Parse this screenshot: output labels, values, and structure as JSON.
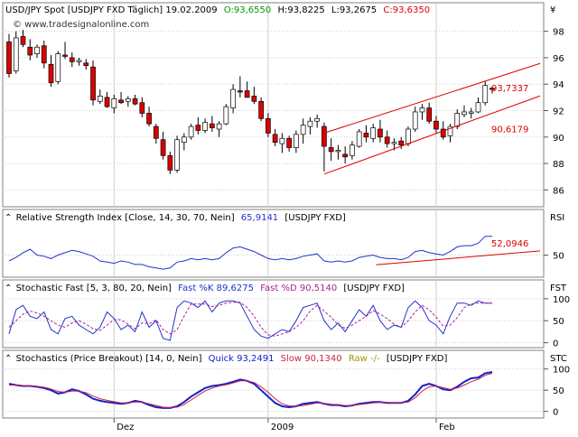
{
  "header": {
    "symbol": "USD/JPY Spot [USDJPY FXD  Täglich] 19.02.2009",
    "open": "O:93,6550",
    "high": "H:93,8225",
    "low": "L:93,2675",
    "close": "C:93,6350",
    "currency_symbol": "¥",
    "watermark": "© www.tradesignalonline.com"
  },
  "panels": {
    "rsi": {
      "title": "Relative Strength Index [Close, 14, 30, 70, Nein]",
      "value": "65,9141",
      "source": "[USDJPY FXD]",
      "axis_label": "RSI",
      "trend_label": "52,0946"
    },
    "stoch_fast": {
      "title": "Stochastic Fast [5, 3, 80, 20, Nein]",
      "k_text": "Fast %K 89,6275",
      "d_text": "Fast %D 90,5140",
      "source": "[USDJPY FXD]",
      "axis_label": "FST"
    },
    "stoch_breakout": {
      "title": "Stochastics (Price Breakout) [14, 0, Nein]",
      "quick_text": "Quick 93,2491",
      "slow_text": "Slow 90,1340",
      "raw_text": "Raw -/-",
      "source": "[USDJPY FXD]",
      "axis_label": "STC"
    }
  },
  "colors": {
    "up_candle": "#ffffff",
    "down_candle": "#dd0000",
    "channel": "#dd0000",
    "rsi_line": "#2233cc",
    "k_line": "#2233cc",
    "d_line": "#aa2299",
    "quick_line": "#1122cc",
    "slow_line": "#cc2244",
    "open_color": "#009900",
    "close_color": "#dd0000",
    "raw_color": "#999900",
    "grid": "#cccccc"
  },
  "chart_data": [
    {
      "type": "candlestick",
      "title": "USD/JPY Spot",
      "x_ticks": [
        "Dez",
        "2009",
        "Feb"
      ],
      "ylim": [
        85,
        99
      ],
      "y_ticks": [
        "98",
        "96",
        "94",
        "92",
        "90",
        "88",
        "86"
      ],
      "grid": true,
      "candles": [
        {
          "o": 97.2,
          "h": 97.8,
          "l": 94.5,
          "c": 94.8
        },
        {
          "o": 95.0,
          "h": 98.0,
          "l": 94.8,
          "c": 97.5
        },
        {
          "o": 97.6,
          "h": 98.1,
          "l": 96.8,
          "c": 97.0
        },
        {
          "o": 96.8,
          "h": 97.4,
          "l": 95.8,
          "c": 96.2
        },
        {
          "o": 96.3,
          "h": 97.0,
          "l": 96.0,
          "c": 96.8
        },
        {
          "o": 96.9,
          "h": 97.3,
          "l": 95.2,
          "c": 95.6
        },
        {
          "o": 95.5,
          "h": 96.2,
          "l": 93.8,
          "c": 94.1
        },
        {
          "o": 94.2,
          "h": 96.5,
          "l": 94.0,
          "c": 96.3
        },
        {
          "o": 96.2,
          "h": 97.2,
          "l": 95.9,
          "c": 96.1
        },
        {
          "o": 96.0,
          "h": 96.4,
          "l": 95.3,
          "c": 95.7
        },
        {
          "o": 95.7,
          "h": 96.0,
          "l": 95.4,
          "c": 95.8
        },
        {
          "o": 95.6,
          "h": 95.9,
          "l": 95.1,
          "c": 95.4
        },
        {
          "o": 95.3,
          "h": 95.8,
          "l": 92.4,
          "c": 92.8
        },
        {
          "o": 92.7,
          "h": 93.6,
          "l": 92.5,
          "c": 93.1
        },
        {
          "o": 93.0,
          "h": 93.4,
          "l": 92.2,
          "c": 92.3
        },
        {
          "o": 92.2,
          "h": 93.2,
          "l": 91.8,
          "c": 92.9
        },
        {
          "o": 92.8,
          "h": 93.4,
          "l": 92.5,
          "c": 92.6
        },
        {
          "o": 92.7,
          "h": 93.1,
          "l": 92.3,
          "c": 92.9
        },
        {
          "o": 92.9,
          "h": 93.2,
          "l": 92.4,
          "c": 92.5
        },
        {
          "o": 92.6,
          "h": 93.0,
          "l": 91.5,
          "c": 91.8
        },
        {
          "o": 91.8,
          "h": 92.3,
          "l": 90.8,
          "c": 91.0
        },
        {
          "o": 90.8,
          "h": 91.0,
          "l": 89.5,
          "c": 89.9
        },
        {
          "o": 89.8,
          "h": 90.4,
          "l": 88.3,
          "c": 88.6
        },
        {
          "o": 88.6,
          "h": 88.9,
          "l": 87.2,
          "c": 87.5
        },
        {
          "o": 87.5,
          "h": 90.1,
          "l": 87.3,
          "c": 89.8
        },
        {
          "o": 89.6,
          "h": 90.3,
          "l": 89.0,
          "c": 90.0
        },
        {
          "o": 90.0,
          "h": 91.0,
          "l": 89.8,
          "c": 90.8
        },
        {
          "o": 90.9,
          "h": 91.5,
          "l": 90.2,
          "c": 90.5
        },
        {
          "o": 90.5,
          "h": 91.4,
          "l": 90.3,
          "c": 91.1
        },
        {
          "o": 91.0,
          "h": 91.6,
          "l": 90.4,
          "c": 90.7
        },
        {
          "o": 90.6,
          "h": 91.2,
          "l": 90.0,
          "c": 91.0
        },
        {
          "o": 91.0,
          "h": 92.5,
          "l": 90.9,
          "c": 92.3
        },
        {
          "o": 92.2,
          "h": 94.0,
          "l": 91.8,
          "c": 93.6
        },
        {
          "o": 93.5,
          "h": 94.6,
          "l": 93.0,
          "c": 93.4
        },
        {
          "o": 93.5,
          "h": 94.2,
          "l": 93.1,
          "c": 93.0
        },
        {
          "o": 93.1,
          "h": 93.8,
          "l": 92.5,
          "c": 92.7
        },
        {
          "o": 92.7,
          "h": 93.0,
          "l": 91.2,
          "c": 91.4
        },
        {
          "o": 91.4,
          "h": 91.8,
          "l": 90.0,
          "c": 90.3
        },
        {
          "o": 90.2,
          "h": 90.6,
          "l": 89.3,
          "c": 89.6
        },
        {
          "o": 89.5,
          "h": 90.3,
          "l": 88.8,
          "c": 89.9
        },
        {
          "o": 89.9,
          "h": 90.1,
          "l": 88.9,
          "c": 89.2
        },
        {
          "o": 89.2,
          "h": 90.5,
          "l": 88.8,
          "c": 90.2
        },
        {
          "o": 90.2,
          "h": 91.4,
          "l": 89.5,
          "c": 90.9
        },
        {
          "o": 90.8,
          "h": 91.5,
          "l": 90.2,
          "c": 91.2
        },
        {
          "o": 91.2,
          "h": 91.7,
          "l": 90.7,
          "c": 91.4
        },
        {
          "o": 90.8,
          "h": 91.1,
          "l": 87.4,
          "c": 89.3
        },
        {
          "o": 89.2,
          "h": 89.9,
          "l": 88.2,
          "c": 88.9
        },
        {
          "o": 88.9,
          "h": 89.4,
          "l": 88.3,
          "c": 89.0
        },
        {
          "o": 88.7,
          "h": 89.3,
          "l": 88.0,
          "c": 88.5
        },
        {
          "o": 88.6,
          "h": 89.7,
          "l": 88.3,
          "c": 89.4
        },
        {
          "o": 89.3,
          "h": 90.6,
          "l": 89.2,
          "c": 90.4
        },
        {
          "o": 90.3,
          "h": 90.9,
          "l": 89.6,
          "c": 90.0
        },
        {
          "o": 89.9,
          "h": 91.0,
          "l": 89.6,
          "c": 90.7
        },
        {
          "o": 90.6,
          "h": 91.3,
          "l": 89.6,
          "c": 90.0
        },
        {
          "o": 90.0,
          "h": 90.5,
          "l": 89.2,
          "c": 89.5
        },
        {
          "o": 89.5,
          "h": 89.9,
          "l": 89.0,
          "c": 89.6
        },
        {
          "o": 89.7,
          "h": 90.0,
          "l": 89.1,
          "c": 89.4
        },
        {
          "o": 89.5,
          "h": 90.8,
          "l": 89.3,
          "c": 90.6
        },
        {
          "o": 90.6,
          "h": 92.3,
          "l": 90.4,
          "c": 91.9
        },
        {
          "o": 91.9,
          "h": 92.5,
          "l": 91.3,
          "c": 92.2
        },
        {
          "o": 92.2,
          "h": 92.6,
          "l": 91.0,
          "c": 91.2
        },
        {
          "o": 91.2,
          "h": 91.6,
          "l": 90.3,
          "c": 90.6
        },
        {
          "o": 90.6,
          "h": 91.2,
          "l": 89.8,
          "c": 90.0
        },
        {
          "o": 90.1,
          "h": 91.0,
          "l": 89.6,
          "c": 90.8
        },
        {
          "o": 90.8,
          "h": 92.1,
          "l": 90.6,
          "c": 91.8
        },
        {
          "o": 91.7,
          "h": 92.4,
          "l": 91.5,
          "c": 91.9
        },
        {
          "o": 91.8,
          "h": 92.2,
          "l": 91.4,
          "c": 91.9
        },
        {
          "o": 91.9,
          "h": 93.0,
          "l": 91.8,
          "c": 92.6
        },
        {
          "o": 92.6,
          "h": 94.2,
          "l": 92.4,
          "c": 93.9
        },
        {
          "o": 93.7,
          "h": 93.8,
          "l": 93.3,
          "c": 93.6
        }
      ],
      "channel": {
        "upper": {
          "start": [
            45,
            90.3
          ],
          "end": [
            69,
            94.4
          ],
          "label": "93,7337"
        },
        "lower": {
          "start": [
            45,
            87.2
          ],
          "end": [
            69,
            91.8
          ],
          "label": "90,6179"
        }
      }
    },
    {
      "type": "line",
      "title": "Relative Strength Index",
      "ylim": [
        35,
        75
      ],
      "y_ticks": [
        "50"
      ],
      "series": [
        {
          "name": "Relative Strength Index",
          "values": [
            45,
            48,
            52,
            55,
            50,
            49,
            47,
            50,
            52,
            54,
            53,
            51,
            49,
            45,
            44,
            43,
            45,
            44,
            42,
            42,
            40,
            39,
            38,
            39,
            44,
            45,
            47,
            46,
            47,
            46,
            47,
            52,
            56,
            57,
            55,
            53,
            50,
            47,
            46,
            47,
            46,
            47,
            49,
            50,
            51,
            45,
            44,
            45,
            44,
            45,
            48,
            49,
            50,
            48,
            47,
            47,
            46,
            48,
            53,
            54,
            52,
            51,
            50,
            53,
            57,
            58,
            58,
            60,
            66,
            66
          ]
        }
      ],
      "trendline": {
        "start": [
          55,
          44
        ],
        "end": [
          69,
          52
        ]
      }
    },
    {
      "type": "line",
      "title": "Stochastic Fast",
      "ylim": [
        -5,
        110
      ],
      "y_ticks": [
        "100",
        "50",
        "0"
      ],
      "series": [
        {
          "name": "Fast %K",
          "values": [
            20,
            75,
            85,
            60,
            55,
            70,
            30,
            20,
            55,
            60,
            40,
            30,
            20,
            35,
            70,
            55,
            30,
            40,
            25,
            70,
            35,
            50,
            10,
            5,
            80,
            95,
            90,
            80,
            95,
            70,
            90,
            95,
            95,
            90,
            60,
            30,
            15,
            10,
            20,
            30,
            25,
            50,
            80,
            85,
            90,
            50,
            30,
            45,
            25,
            50,
            75,
            60,
            85,
            50,
            30,
            40,
            35,
            80,
            95,
            80,
            50,
            40,
            20,
            60,
            90,
            90,
            85,
            95,
            90,
            90
          ]
        },
        {
          "name": "Fast %D",
          "values": [
            35,
            50,
            65,
            72,
            68,
            60,
            50,
            40,
            35,
            45,
            50,
            42,
            32,
            28,
            40,
            53,
            52,
            42,
            32,
            45,
            43,
            52,
            30,
            20,
            30,
            60,
            88,
            88,
            88,
            82,
            85,
            90,
            92,
            92,
            80,
            60,
            35,
            18,
            15,
            20,
            25,
            35,
            50,
            72,
            85,
            72,
            58,
            40,
            33,
            40,
            50,
            60,
            73,
            65,
            55,
            42,
            35,
            50,
            70,
            85,
            75,
            58,
            38,
            40,
            57,
            80,
            88,
            90,
            90,
            90
          ]
        }
      ]
    },
    {
      "type": "line",
      "title": "Stochastics (Price Breakout)",
      "ylim": [
        -5,
        110
      ],
      "y_ticks": [
        "100",
        "50",
        "0"
      ],
      "series": [
        {
          "name": "Quick",
          "values": [
            65,
            62,
            60,
            60,
            58,
            55,
            50,
            42,
            45,
            52,
            48,
            40,
            30,
            25,
            22,
            20,
            18,
            20,
            25,
            22,
            15,
            10,
            8,
            8,
            12,
            22,
            35,
            45,
            55,
            60,
            62,
            65,
            70,
            75,
            72,
            65,
            50,
            35,
            20,
            12,
            10,
            12,
            18,
            20,
            22,
            18,
            15,
            15,
            12,
            14,
            18,
            20,
            22,
            22,
            20,
            20,
            20,
            25,
            40,
            60,
            65,
            60,
            52,
            50,
            58,
            70,
            78,
            80,
            90,
            93
          ]
        },
        {
          "name": "Slow",
          "values": [
            62,
            62,
            61,
            60,
            59,
            57,
            53,
            47,
            45,
            48,
            48,
            44,
            36,
            30,
            26,
            23,
            20,
            20,
            22,
            22,
            18,
            14,
            10,
            9,
            10,
            16,
            27,
            38,
            48,
            55,
            60,
            63,
            67,
            72,
            72,
            68,
            58,
            45,
            30,
            18,
            13,
            12,
            14,
            17,
            20,
            19,
            17,
            16,
            14,
            14,
            16,
            18,
            20,
            21,
            21,
            20,
            20,
            22,
            32,
            48,
            58,
            60,
            56,
            52,
            55,
            62,
            70,
            76,
            85,
            90
          ]
        }
      ]
    }
  ]
}
